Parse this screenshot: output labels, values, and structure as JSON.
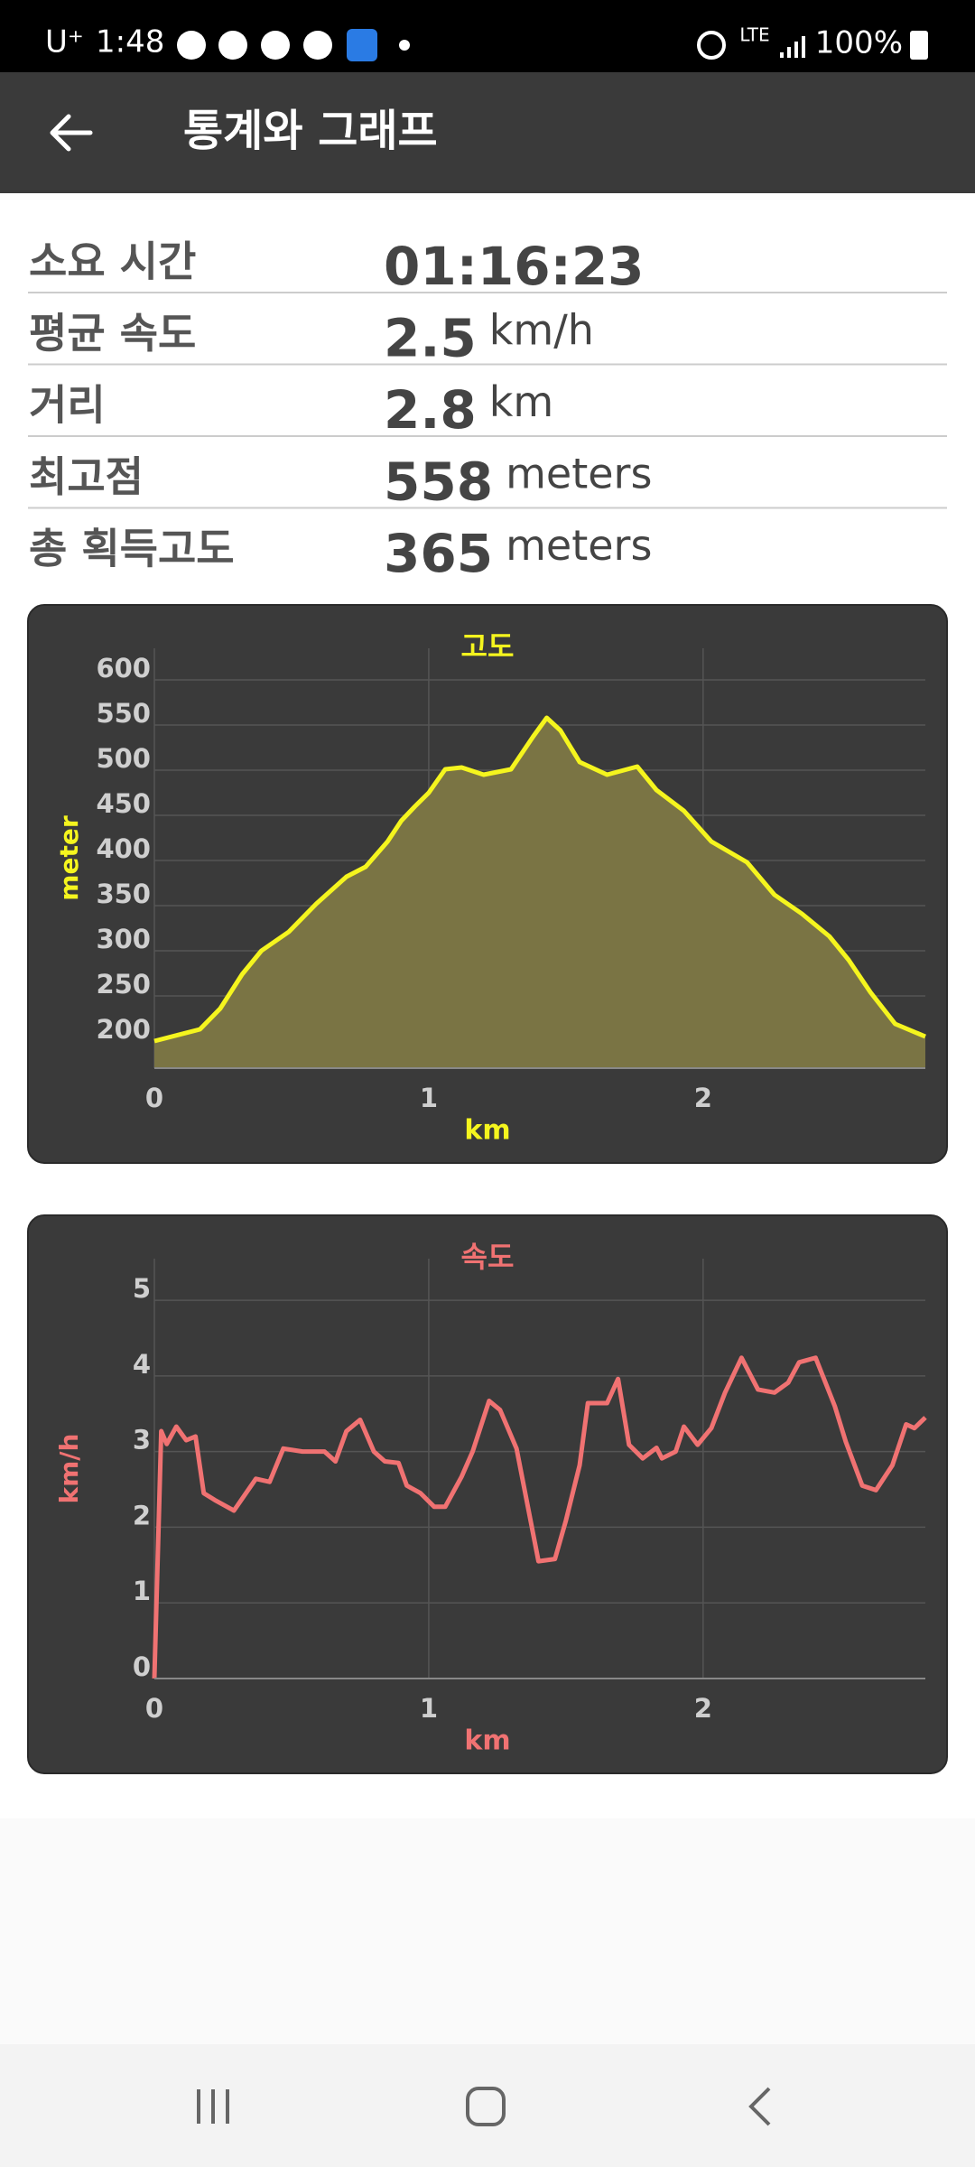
{
  "status_bar": {
    "carrier": "U⁺",
    "time": "1:48",
    "network": "LTE",
    "battery": "100%"
  },
  "app_bar": {
    "title": "통계와 그래프"
  },
  "stats": {
    "rows": [
      {
        "label": "소요 시간",
        "value": "01:16:23"
      },
      {
        "label": "평균 속도",
        "value": "2.5",
        "unit": "km/h"
      },
      {
        "label": "거리",
        "value": "2.8",
        "unit": "km"
      },
      {
        "label": "최고점",
        "value": "558",
        "unit": "meters"
      },
      {
        "label": "총 획득고도",
        "value": "365",
        "unit": "meters"
      }
    ]
  },
  "chart_data": [
    {
      "type": "area",
      "title": "고도",
      "x_label": "km",
      "y_label": "meter",
      "color": "#f5f51e",
      "fill_color": "#7a7444",
      "x": [
        0,
        0.166,
        0.24,
        0.32,
        0.39,
        0.49,
        0.59,
        0.7,
        0.77,
        0.85,
        0.9,
        0.95,
        1.0,
        1.06,
        1.12,
        1.2,
        1.3,
        1.38,
        1.43,
        1.48,
        1.55,
        1.65,
        1.76,
        1.83,
        1.93,
        2.03,
        2.16,
        2.26,
        2.36,
        2.46,
        2.53,
        2.61,
        2.7,
        2.81
      ],
      "values": [
        200,
        213,
        236,
        274,
        300,
        321,
        352,
        382,
        393,
        421,
        444,
        460,
        475,
        501,
        503,
        495,
        501,
        537,
        558,
        544,
        509,
        495,
        504,
        478,
        455,
        421,
        398,
        362,
        341,
        316,
        290,
        254,
        219,
        205
      ],
      "xlim": [
        0,
        2.81
      ],
      "ylim": [
        170,
        635
      ],
      "xticks": [
        0,
        1,
        2
      ],
      "yticks": [
        200,
        250,
        300,
        350,
        400,
        450,
        500,
        550,
        600
      ],
      "grid": true
    },
    {
      "type": "line",
      "title": "속도",
      "x_label": "km",
      "y_label": "km/h",
      "color": "#f07272",
      "x": [
        0,
        0.025,
        0.045,
        0.08,
        0.116,
        0.15,
        0.18,
        0.22,
        0.29,
        0.37,
        0.42,
        0.47,
        0.54,
        0.62,
        0.66,
        0.7,
        0.75,
        0.8,
        0.84,
        0.89,
        0.92,
        0.97,
        1.02,
        1.06,
        1.12,
        1.16,
        1.22,
        1.26,
        1.32,
        1.4,
        1.46,
        1.5,
        1.55,
        1.58,
        1.65,
        1.69,
        1.73,
        1.78,
        1.83,
        1.85,
        1.9,
        1.93,
        1.98,
        2.03,
        2.08,
        2.14,
        2.2,
        2.26,
        2.31,
        2.35,
        2.41,
        2.48,
        2.52,
        2.58,
        2.63,
        2.69,
        2.74,
        2.77,
        2.81
      ],
      "values": [
        0,
        3.27,
        3.1,
        3.33,
        3.15,
        3.2,
        2.45,
        2.36,
        2.22,
        2.64,
        2.6,
        3.04,
        3.0,
        3.0,
        2.87,
        3.27,
        3.42,
        3.0,
        2.87,
        2.85,
        2.55,
        2.45,
        2.27,
        2.27,
        2.67,
        3.0,
        3.67,
        3.55,
        3.04,
        1.55,
        1.58,
        2.09,
        2.82,
        3.64,
        3.64,
        3.96,
        3.09,
        2.91,
        3.05,
        2.91,
        3.0,
        3.33,
        3.09,
        3.31,
        3.78,
        4.24,
        3.82,
        3.78,
        3.91,
        4.18,
        4.24,
        3.6,
        3.13,
        2.55,
        2.49,
        2.82,
        3.36,
        3.31,
        3.45
      ],
      "xlim": [
        0,
        2.81
      ],
      "ylim": [
        0,
        5.55
      ],
      "xticks": [
        0,
        1,
        2
      ],
      "yticks": [
        0,
        1,
        2,
        3,
        4,
        5
      ],
      "grid": true
    }
  ]
}
